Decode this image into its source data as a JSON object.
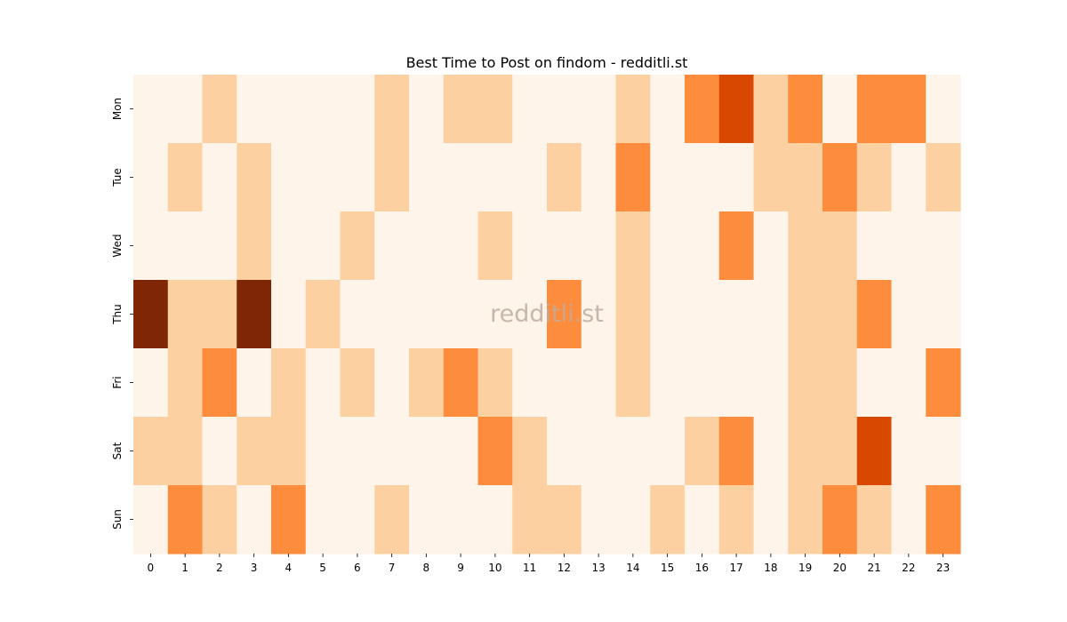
{
  "chart_data": {
    "type": "heatmap",
    "title": "Best Time to Post on findom - redditli.st",
    "xlabel": "",
    "ylabel": "",
    "watermark": "redditli.st",
    "x": [
      "0",
      "1",
      "2",
      "3",
      "4",
      "5",
      "6",
      "7",
      "8",
      "9",
      "10",
      "11",
      "12",
      "13",
      "14",
      "15",
      "16",
      "17",
      "18",
      "19",
      "20",
      "21",
      "22",
      "23"
    ],
    "y": [
      "Mon",
      "Tue",
      "Wed",
      "Thu",
      "Fri",
      "Sat",
      "Sun"
    ],
    "values": [
      [
        0,
        0,
        1,
        0,
        0,
        0,
        0,
        1,
        0,
        1,
        1,
        0,
        0,
        0,
        1,
        0,
        2,
        3,
        1,
        2,
        0,
        2,
        2,
        0
      ],
      [
        0,
        1,
        0,
        1,
        0,
        0,
        0,
        1,
        0,
        0,
        0,
        0,
        1,
        0,
        2,
        0,
        0,
        0,
        1,
        1,
        2,
        1,
        0,
        1
      ],
      [
        0,
        0,
        0,
        1,
        0,
        0,
        1,
        0,
        0,
        0,
        1,
        0,
        0,
        0,
        1,
        0,
        0,
        2,
        0,
        1,
        1,
        0,
        0,
        0
      ],
      [
        4,
        1,
        1,
        4,
        0,
        1,
        0,
        0,
        0,
        0,
        0,
        0,
        2,
        0,
        1,
        0,
        0,
        0,
        0,
        1,
        1,
        2,
        0,
        0
      ],
      [
        0,
        1,
        2,
        0,
        1,
        0,
        1,
        0,
        1,
        2,
        1,
        0,
        0,
        0,
        1,
        0,
        0,
        0,
        0,
        1,
        1,
        0,
        0,
        2
      ],
      [
        1,
        1,
        0,
        1,
        1,
        0,
        0,
        0,
        0,
        0,
        2,
        1,
        0,
        0,
        0,
        0,
        1,
        2,
        0,
        1,
        1,
        3,
        0,
        0
      ],
      [
        0,
        2,
        1,
        0,
        2,
        0,
        0,
        1,
        0,
        0,
        0,
        1,
        1,
        0,
        0,
        1,
        0,
        1,
        0,
        1,
        2,
        1,
        0,
        2
      ]
    ],
    "colors": [
      "#fef4e9",
      "#fdd0a2",
      "#fd8d3c",
      "#d94801",
      "#7f2704"
    ],
    "colormap": "Oranges",
    "colorbar": false,
    "grid": false
  }
}
